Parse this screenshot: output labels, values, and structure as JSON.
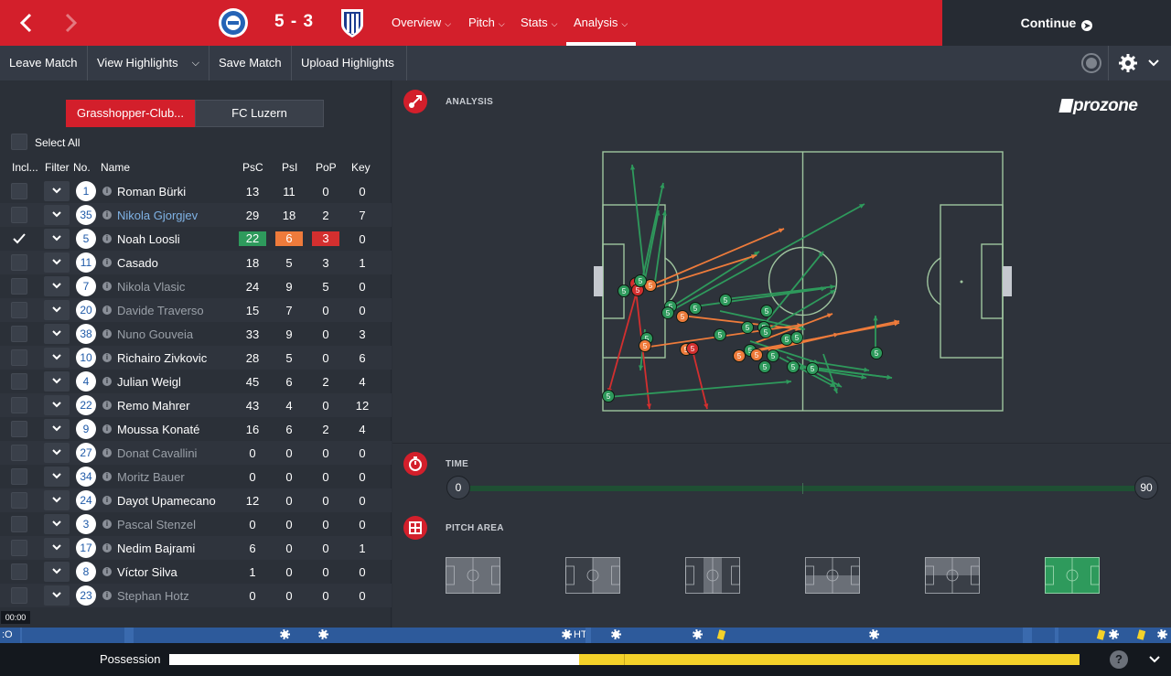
{
  "header": {
    "back_icon": "chevron-left-icon",
    "forward_icon": "chevron-right-icon",
    "score": "5 - 3",
    "tabs": [
      {
        "label": "Overview"
      },
      {
        "label": "Pitch"
      },
      {
        "label": "Stats"
      },
      {
        "label": "Analysis"
      }
    ],
    "continue_label": "Continue"
  },
  "toolbar": {
    "leave": "Leave Match",
    "highlights": "View Highlights",
    "save": "Save Match",
    "upload": "Upload Highlights"
  },
  "teams": {
    "home": "Grasshopper-Club...",
    "away": "FC Luzern"
  },
  "select_all": "Select All",
  "columns": {
    "incl": "Incl...",
    "filter": "Filter",
    "no": "No.",
    "name": "Name",
    "psc": "PsC",
    "psi": "PsI",
    "pop": "PoP",
    "key": "Key"
  },
  "players": [
    {
      "no": "1",
      "name": "Roman Bürki",
      "psc": "13",
      "psi": "11",
      "pop": "0",
      "key": "0",
      "style": "normal"
    },
    {
      "no": "35",
      "name": "Nikola Gjorgjev",
      "psc": "29",
      "psi": "18",
      "pop": "2",
      "key": "7",
      "style": "link"
    },
    {
      "no": "5",
      "name": "Noah Loosli",
      "psc": "22",
      "psi": "6",
      "pop": "3",
      "key": "0",
      "style": "selected"
    },
    {
      "no": "11",
      "name": "Casado",
      "psc": "18",
      "psi": "5",
      "pop": "3",
      "key": "1",
      "style": "normal"
    },
    {
      "no": "7",
      "name": "Nikola Vlasic",
      "psc": "24",
      "psi": "9",
      "pop": "5",
      "key": "0",
      "style": "dim"
    },
    {
      "no": "20",
      "name": "Davide Traverso",
      "psc": "15",
      "psi": "7",
      "pop": "0",
      "key": "0",
      "style": "dim"
    },
    {
      "no": "38",
      "name": "Nuno Gouveia",
      "psc": "33",
      "psi": "9",
      "pop": "0",
      "key": "3",
      "style": "dim"
    },
    {
      "no": "10",
      "name": "Richairo Zivkovic",
      "psc": "28",
      "psi": "5",
      "pop": "0",
      "key": "6",
      "style": "normal"
    },
    {
      "no": "4",
      "name": "Julian Weigl",
      "psc": "45",
      "psi": "6",
      "pop": "2",
      "key": "4",
      "style": "normal"
    },
    {
      "no": "22",
      "name": "Remo Mahrer",
      "psc": "43",
      "psi": "4",
      "pop": "0",
      "key": "12",
      "style": "normal"
    },
    {
      "no": "9",
      "name": "Moussa Konaté",
      "psc": "16",
      "psi": "6",
      "pop": "2",
      "key": "4",
      "style": "normal"
    },
    {
      "no": "27",
      "name": "Donat Cavallini",
      "psc": "0",
      "psi": "0",
      "pop": "0",
      "key": "0",
      "style": "dim"
    },
    {
      "no": "34",
      "name": "Moritz Bauer",
      "psc": "0",
      "psi": "0",
      "pop": "0",
      "key": "0",
      "style": "dim"
    },
    {
      "no": "24",
      "name": "Dayot Upamecano",
      "psc": "12",
      "psi": "0",
      "pop": "0",
      "key": "0",
      "style": "normal"
    },
    {
      "no": "3",
      "name": "Pascal Stenzel",
      "psc": "0",
      "psi": "0",
      "pop": "0",
      "key": "0",
      "style": "dim"
    },
    {
      "no": "17",
      "name": "Nedim Bajrami",
      "psc": "6",
      "psi": "0",
      "pop": "0",
      "key": "1",
      "style": "normal"
    },
    {
      "no": "8",
      "name": "Víctor Silva",
      "psc": "1",
      "psi": "0",
      "pop": "0",
      "key": "0",
      "style": "normal"
    },
    {
      "no": "23",
      "name": "Stephan Hotz",
      "psc": "0",
      "psi": "0",
      "pop": "0",
      "key": "0",
      "style": "dim"
    }
  ],
  "analysis": {
    "title": "ANALYSIS",
    "brand": "prozone",
    "time_title": "TIME",
    "time_start": "0",
    "time_end": "90",
    "pitch_area_title": "PITCH AREA",
    "selected_area": 6
  },
  "clock": "00:00",
  "timeline": {
    "ht": "HT"
  },
  "possession": {
    "label": "Possession",
    "home_share": 0.45,
    "help": "?"
  },
  "colors": {
    "brand_red": "#d31f2b",
    "complete": "#2e9a5c",
    "incomplete_orange": "#ee7b3b",
    "incomplete_red": "#d32f2f",
    "away_yellow": "#f4d22a"
  }
}
